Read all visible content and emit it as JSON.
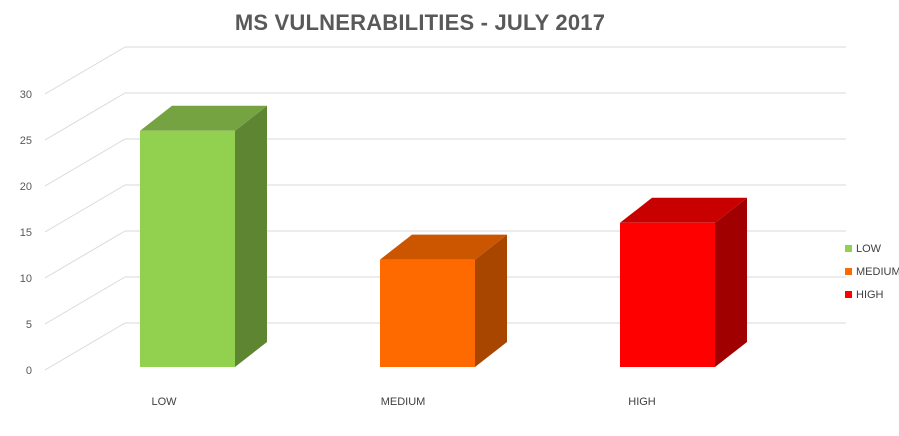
{
  "chart_data": {
    "type": "bar",
    "title": "MS VULNERABILITIES - JULY 2017",
    "categories": [
      "LOW",
      "MEDIUM",
      "HIGH"
    ],
    "values": [
      26,
      12,
      16
    ],
    "ylim": [
      0,
      30
    ],
    "yticks": [
      "0",
      "5",
      "10",
      "15",
      "20",
      "25",
      "30"
    ],
    "grid": true,
    "three_d": true,
    "legend_position": "right",
    "legend": [
      "LOW",
      "MEDIUM",
      "HIGH"
    ],
    "colors": {
      "LOW": {
        "front": "#92d050",
        "top": "#76a341",
        "side": "#5e8632"
      },
      "MEDIUM": {
        "front": "#ff6a00",
        "top": "#cc5500",
        "side": "#a84600"
      },
      "HIGH": {
        "front": "#ff0000",
        "top": "#c80000",
        "side": "#a00000"
      }
    },
    "grid_color": "#d9d9d9"
  }
}
